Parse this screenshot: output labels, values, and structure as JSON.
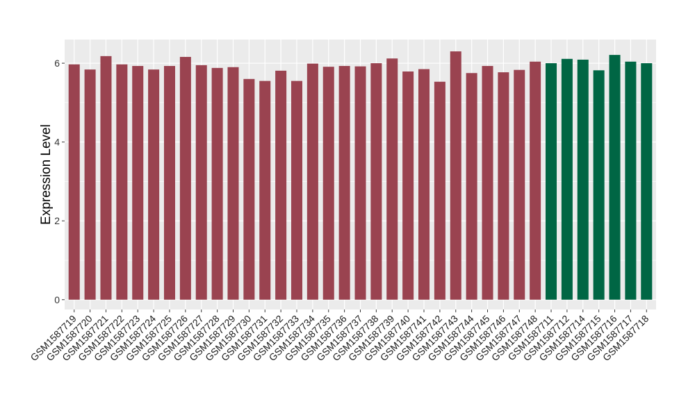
{
  "chart_data": {
    "type": "bar",
    "title": "",
    "xlabel": "",
    "ylabel": "Expression Level",
    "ylim": [
      -0.25,
      6.6
    ],
    "yticks": [
      0,
      2,
      4,
      6
    ],
    "grid": true,
    "legend": "none",
    "categories": [
      "GSM1587719",
      "GSM1587720",
      "GSM1587721",
      "GSM1587722",
      "GSM1587723",
      "GSM1587724",
      "GSM1587725",
      "GSM1587726",
      "GSM1587727",
      "GSM1587728",
      "GSM1587729",
      "GSM1587730",
      "GSM1587731",
      "GSM1587732",
      "GSM1587733",
      "GSM1587734",
      "GSM1587735",
      "GSM1587736",
      "GSM1587737",
      "GSM1587738",
      "GSM1587739",
      "GSM1587740",
      "GSM1587741",
      "GSM1587742",
      "GSM1587743",
      "GSM1587744",
      "GSM1587745",
      "GSM1587746",
      "GSM1587747",
      "GSM1587748",
      "GSM1587711",
      "GSM1587712",
      "GSM1587714",
      "GSM1587715",
      "GSM1587716",
      "GSM1587717",
      "GSM1587718"
    ],
    "values": [
      5.97,
      5.84,
      6.18,
      5.97,
      5.93,
      5.84,
      5.93,
      6.16,
      5.95,
      5.88,
      5.9,
      5.6,
      5.55,
      5.81,
      5.55,
      5.99,
      5.91,
      5.93,
      5.92,
      6.0,
      6.12,
      5.79,
      5.85,
      5.53,
      6.3,
      5.75,
      5.93,
      5.77,
      5.83,
      6.04,
      6.0,
      6.11,
      6.09,
      5.82,
      6.21,
      6.04,
      6.0
    ],
    "group_colors": [
      "#9a4350",
      "#006644",
      "#006644",
      "#006644",
      "#006644",
      "#006644",
      "#006644",
      "#006644"
    ],
    "bar_colors": [
      "#9a4350",
      "#9a4350",
      "#9a4350",
      "#9a4350",
      "#9a4350",
      "#9a4350",
      "#9a4350",
      "#9a4350",
      "#9a4350",
      "#9a4350",
      "#9a4350",
      "#9a4350",
      "#9a4350",
      "#9a4350",
      "#9a4350",
      "#9a4350",
      "#9a4350",
      "#9a4350",
      "#9a4350",
      "#9a4350",
      "#9a4350",
      "#9a4350",
      "#9a4350",
      "#9a4350",
      "#9a4350",
      "#9a4350",
      "#9a4350",
      "#9a4350",
      "#9a4350",
      "#9a4350",
      "#006644",
      "#006644",
      "#006644",
      "#006644",
      "#006644",
      "#006644",
      "#006644"
    ],
    "panel_background": "#ebebeb",
    "grid_color": "#ffffff"
  }
}
